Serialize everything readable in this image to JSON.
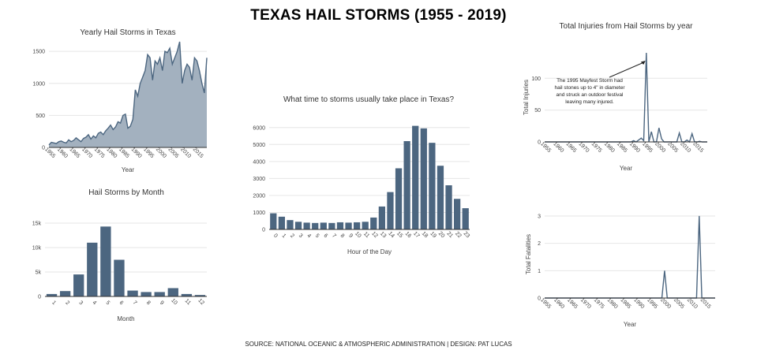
{
  "title": "TEXAS HAIL STORMS (1955 - 2019)",
  "source": "SOURCE: NATIONAL OCEANIC & ATMOSPHERIC ADMINISTRATION | DESIGN: PAT LUCAS",
  "colors": {
    "bar": "#4c6680",
    "area_fill": "#a3b1bf",
    "line": "#4c6680"
  },
  "chart_data": [
    {
      "id": "yearly",
      "type": "area",
      "title": "Yearly Hail Storms in Texas",
      "xlabel": "Year",
      "ylabel": "",
      "xlim": [
        1955,
        2019
      ],
      "ylim": [
        0,
        1600
      ],
      "yticks": [
        0,
        500,
        1000,
        1500
      ],
      "ytick_labels": [
        "0",
        "500",
        "1000",
        "1500"
      ],
      "xticks": [
        "1955",
        "1960",
        "1965",
        "1970",
        "1975",
        "1980",
        "1985",
        "1990",
        "1995",
        "2000",
        "2005",
        "2010",
        "2015"
      ],
      "x": [
        1955,
        1956,
        1957,
        1958,
        1959,
        1960,
        1961,
        1962,
        1963,
        1964,
        1965,
        1966,
        1967,
        1968,
        1969,
        1970,
        1971,
        1972,
        1973,
        1974,
        1975,
        1976,
        1977,
        1978,
        1979,
        1980,
        1981,
        1982,
        1983,
        1984,
        1985,
        1986,
        1987,
        1988,
        1989,
        1990,
        1991,
        1992,
        1993,
        1994,
        1995,
        1996,
        1997,
        1998,
        1999,
        2000,
        2001,
        2002,
        2003,
        2004,
        2005,
        2006,
        2007,
        2008,
        2009,
        2010,
        2011,
        2012,
        2013,
        2014,
        2015,
        2016,
        2017,
        2018,
        2019
      ],
      "values": [
        40,
        80,
        70,
        60,
        90,
        100,
        80,
        70,
        120,
        90,
        110,
        150,
        120,
        90,
        140,
        160,
        200,
        130,
        180,
        150,
        220,
        240,
        200,
        260,
        300,
        350,
        280,
        320,
        400,
        380,
        500,
        520,
        300,
        330,
        440,
        900,
        800,
        1000,
        1100,
        1200,
        1450,
        1400,
        1050,
        1350,
        1300,
        1400,
        1200,
        1500,
        1480,
        1550,
        1300,
        1400,
        1500,
        1650,
        1000,
        1200,
        1300,
        1250,
        1050,
        1400,
        1350,
        1200,
        1000,
        850,
        1400
      ]
    },
    {
      "id": "monthly",
      "type": "bar",
      "title": "Hail Storms by Month",
      "xlabel": "Month",
      "ylabel": "",
      "ylim": [
        0,
        15000
      ],
      "yticks": [
        0,
        5000,
        10000,
        15000
      ],
      "ytick_labels": [
        "0",
        "5k",
        "10k",
        "15k"
      ],
      "categories": [
        "1",
        "2",
        "3",
        "4",
        "5",
        "6",
        "7",
        "8",
        "9",
        "10",
        "11",
        "12"
      ],
      "values": [
        500,
        1100,
        4500,
        11000,
        14300,
        7500,
        1200,
        900,
        900,
        1700,
        500,
        300
      ]
    },
    {
      "id": "hourly",
      "type": "bar",
      "title": "What time to storms usually take place in Texas?",
      "xlabel": "Hour of the Day",
      "ylabel": "",
      "ylim": [
        0,
        6500
      ],
      "yticks": [
        0,
        1000,
        2000,
        3000,
        4000,
        5000,
        6000
      ],
      "ytick_labels": [
        "0",
        "1000",
        "2000",
        "3000",
        "4000",
        "5000",
        "6000"
      ],
      "categories": [
        "0",
        "1",
        "2",
        "3",
        "4",
        "5",
        "6",
        "7",
        "8",
        "9",
        "10",
        "11",
        "12",
        "13",
        "14",
        "15",
        "16",
        "17",
        "18",
        "19",
        "20",
        "21",
        "22",
        "23"
      ],
      "values": [
        950,
        750,
        550,
        450,
        400,
        380,
        400,
        380,
        420,
        400,
        420,
        450,
        700,
        1350,
        2200,
        3600,
        5200,
        6100,
        5950,
        5100,
        3750,
        2600,
        1800,
        1250
      ]
    },
    {
      "id": "injuries",
      "type": "line",
      "title": "Total Injuries from Hail Storms by year",
      "xlabel": "Year",
      "ylabel": "Total Injuries",
      "xlim": [
        1955,
        2019
      ],
      "ylim": [
        0,
        140
      ],
      "yticks": [
        0,
        50,
        100
      ],
      "ytick_labels": [
        "0",
        "50",
        "100"
      ],
      "xticks": [
        "1955",
        "1960",
        "1965",
        "1970",
        "1975",
        "1980",
        "1985",
        "1990",
        "1995",
        "2000",
        "2005",
        "2010",
        "2015"
      ],
      "x": [
        1955,
        1956,
        1957,
        1958,
        1959,
        1960,
        1961,
        1962,
        1963,
        1964,
        1965,
        1966,
        1967,
        1968,
        1969,
        1970,
        1971,
        1972,
        1973,
        1974,
        1975,
        1976,
        1977,
        1978,
        1979,
        1980,
        1981,
        1982,
        1983,
        1984,
        1985,
        1986,
        1987,
        1988,
        1989,
        1990,
        1991,
        1992,
        1993,
        1994,
        1995,
        1996,
        1997,
        1998,
        1999,
        2000,
        2001,
        2002,
        2003,
        2004,
        2005,
        2006,
        2007,
        2008,
        2009,
        2010,
        2011,
        2012,
        2013,
        2014,
        2015,
        2016,
        2017,
        2018,
        2019
      ],
      "values": [
        0,
        0,
        0,
        0,
        0,
        0,
        0,
        0,
        0,
        0,
        0,
        0,
        0,
        0,
        0,
        0,
        0,
        0,
        0,
        0,
        0,
        0,
        0,
        0,
        0,
        0,
        0,
        0,
        0,
        0,
        0,
        0,
        0,
        0,
        0,
        2,
        0,
        3,
        6,
        2,
        140,
        0,
        16,
        0,
        0,
        22,
        5,
        0,
        0,
        0,
        0,
        0,
        0,
        14,
        0,
        0,
        3,
        0,
        13,
        0,
        0,
        1,
        0,
        0,
        0
      ],
      "annotation": "The 1995 Mayfest Storm had hail stones up to 4\" in diameter and struck an outdoor festival leaving many injured.",
      "annotation_lines": [
        "The 1995 Mayfest Storm had",
        "hail stones up to 4\" in diameter",
        "and struck an outdoor festival",
        "leaving many injured."
      ]
    },
    {
      "id": "fatalities",
      "type": "line",
      "title": "",
      "xlabel": "Year",
      "ylabel": "Total Fatalities",
      "xlim": [
        1955,
        2019
      ],
      "ylim": [
        0,
        3.2
      ],
      "yticks": [
        0,
        1,
        2,
        3
      ],
      "ytick_labels": [
        "0",
        "1",
        "2",
        "3"
      ],
      "xticks": [
        "1955",
        "1960",
        "1965",
        "1970",
        "1975",
        "1980",
        "1985",
        "1990",
        "1995",
        "2000",
        "2005",
        "2010",
        "2015"
      ],
      "x": [
        1955,
        1956,
        1957,
        1958,
        1959,
        1960,
        1961,
        1962,
        1963,
        1964,
        1965,
        1966,
        1967,
        1968,
        1969,
        1970,
        1971,
        1972,
        1973,
        1974,
        1975,
        1976,
        1977,
        1978,
        1979,
        1980,
        1981,
        1982,
        1983,
        1984,
        1985,
        1986,
        1987,
        1988,
        1989,
        1990,
        1991,
        1992,
        1993,
        1994,
        1995,
        1996,
        1997,
        1998,
        1999,
        2000,
        2001,
        2002,
        2003,
        2004,
        2005,
        2006,
        2007,
        2008,
        2009,
        2010,
        2011,
        2012,
        2013,
        2014,
        2015,
        2016,
        2017,
        2018,
        2019
      ],
      "values": [
        0,
        0,
        0,
        0,
        0,
        0,
        0,
        0,
        0,
        0,
        0,
        0,
        0,
        0,
        0,
        0,
        0,
        0,
        0,
        0,
        0,
        0,
        0,
        0,
        0,
        0,
        0,
        0,
        0,
        0,
        0,
        0,
        0,
        0,
        0,
        0,
        0,
        0,
        0,
        0,
        0,
        0,
        0,
        0,
        0,
        1,
        0,
        0,
        0,
        0,
        0,
        0,
        0,
        0,
        0,
        0,
        0,
        0,
        3,
        0,
        0,
        0,
        0,
        0,
        0
      ]
    }
  ]
}
